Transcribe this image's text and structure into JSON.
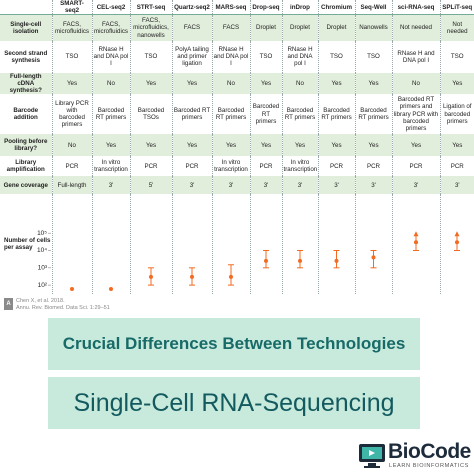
{
  "table": {
    "columns": [
      "SMART-seq2",
      "CEL-seq2",
      "STRT-seq",
      "Quartz-seq2",
      "MARS-seq",
      "Drop-seq",
      "inDrop",
      "Chromium",
      "Seq-Well",
      "sci-RNA-seq",
      "SPLiT-seq"
    ],
    "rows": [
      {
        "label": "Single-cell isolation",
        "cells": [
          "FACS, microfluidics",
          "FACS, microfluidics",
          "FACS, microfluidics, nanowells",
          "FACS",
          "FACS",
          "Droplet",
          "Droplet",
          "Droplet",
          "Nanowells",
          "Not needed",
          "Not needed"
        ]
      },
      {
        "label": "Second strand synthesis",
        "cells": [
          "TSO",
          "RNase H and DNA pol I",
          "TSO",
          "PolyA tailing and primer ligation",
          "RNase H and DNA pol I",
          "TSO",
          "RNase H and DNA pol I",
          "TSO",
          "TSO",
          "RNase H and DNA pol I",
          "TSO"
        ]
      },
      {
        "label": "Full-length cDNA synthesis?",
        "cells": [
          "Yes",
          "No",
          "Yes",
          "Yes",
          "No",
          "Yes",
          "No",
          "Yes",
          "Yes",
          "No",
          "Yes"
        ]
      },
      {
        "label": "Barcode addition",
        "cells": [
          "Library PCR with barcoded primers",
          "Barcoded RT primers",
          "Barcoded TSOs",
          "Barcoded RT primers",
          "Barcoded RT primers",
          "Barcoded RT primers",
          "Barcoded RT primers",
          "Barcoded RT primers",
          "Barcoded RT primers",
          "Barcoded RT primers and library PCR with barcoded primers",
          "Ligation of barcoded primers"
        ]
      },
      {
        "label": "Pooling before library?",
        "cells": [
          "No",
          "Yes",
          "Yes",
          "Yes",
          "Yes",
          "Yes",
          "Yes",
          "Yes",
          "Yes",
          "Yes",
          "Yes"
        ]
      },
      {
        "label": "Library amplification",
        "cells": [
          "PCR",
          "In vitro transcription",
          "PCR",
          "PCR",
          "In vitro transcription",
          "PCR",
          "In vitro transcription",
          "PCR",
          "PCR",
          "PCR",
          "PCR"
        ]
      },
      {
        "label": "Gene coverage",
        "cells": [
          "Full-length",
          "3'",
          "5'",
          "3'",
          "3'",
          "3'",
          "3'",
          "3'",
          "3'",
          "3'",
          "3'"
        ]
      }
    ]
  },
  "chart_data": {
    "type": "errorbar",
    "ylabel": "Number of cells per assay",
    "log_y": true,
    "color": "#f26b21",
    "values": [
      60,
      60,
      300,
      300,
      300,
      2500,
      2500,
      2500,
      4000,
      30000,
      30000
    ],
    "low": [
      null,
      null,
      100,
      100,
      100,
      1000,
      1000,
      1000,
      1000,
      10000,
      10000
    ],
    "high": [
      null,
      null,
      1000,
      1000,
      1500,
      10000,
      10000,
      10000,
      10000,
      100000,
      100000
    ],
    "open_high": [
      false,
      false,
      false,
      false,
      false,
      false,
      false,
      false,
      false,
      true,
      true
    ],
    "ylim": [
      40,
      200000
    ],
    "yticks": [
      {
        "value": 100,
        "label": "10²"
      },
      {
        "value": 1000,
        "label": "10³"
      },
      {
        "value": 10000,
        "label": "10⁴"
      },
      {
        "value": 100000,
        "label": "10⁵"
      }
    ]
  },
  "citation": {
    "line1": "Chen X, et al. 2018.",
    "line2": "Annu. Rev. Biomed. Data Sci. 1:29–51"
  },
  "banner": {
    "subtitle": "Crucial Differences Between Technologies",
    "title": "Single-Cell RNA-Sequencing"
  },
  "logo": {
    "name": "BioCode",
    "tagline": "LEARN BIOINFORMATICS"
  }
}
